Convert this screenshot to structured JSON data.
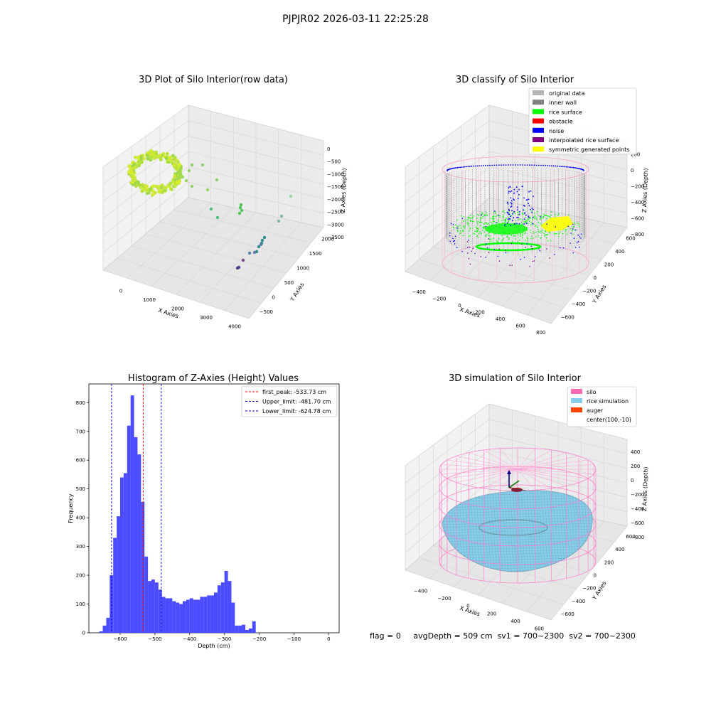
{
  "figure": {
    "suptitle": "PJPJR02 2026-03-11 22:25:28",
    "status": {
      "flag": "flag = 0",
      "avg_depth": "avgDepth = 509 cm",
      "sv1": "sv1 = 700~2300",
      "sv2": "sv2 = 700~2300"
    }
  },
  "colors": {
    "histogram_bar": "#4b4bff",
    "first_peak_line": "#ff0000",
    "limit_lines": "#0000cc",
    "original_data": "#b3b3b3",
    "inner_wall": "#808080",
    "rice_surface": "#00ff00",
    "obstacle": "#ff0000",
    "noise": "#0000ff",
    "interpolated_rice_surface": "#800080",
    "symmetric_generated_points": "#ffff00",
    "silo": "#ff69b4",
    "rice_simulation": "#87ceeb",
    "auger": "#ff4500"
  },
  "chart_data": [
    {
      "type": "scatter",
      "projection": "3d",
      "title": "3D Plot of Silo Interior(row data)",
      "xlabel": "X Axies",
      "ylabel": "Y Axies",
      "zlabel": "Z Axies (Depth)",
      "x_ticks": [
        "0",
        "1000",
        "2000",
        "3000",
        "4000"
      ],
      "y_ticks": [
        "−500",
        "0",
        "500",
        "1000",
        "1500",
        "2000"
      ],
      "z_ticks": [
        "0",
        "−500",
        "−1000",
        "−1500",
        "−2000",
        "−2500",
        "−3000",
        "−3500"
      ]
    },
    {
      "type": "scatter",
      "projection": "3d",
      "title": "3D classify of Silo Interior",
      "xlabel": "X Axies",
      "ylabel": "Y Axies",
      "zlabel": "Z Axies (Depth)",
      "x_ticks": [
        "−400",
        "−200",
        "0",
        "200",
        "400",
        "600",
        "800"
      ],
      "y_ticks": [
        "−600",
        "−400",
        "−200",
        "0",
        "200",
        "400",
        "600"
      ],
      "z_ticks": [
        "200",
        "0",
        "−200",
        "−400",
        "−600",
        "−800"
      ],
      "legend_position": "top-right",
      "legend": [
        "original data",
        "inner wall",
        "rice surface",
        "obstacle",
        "noise",
        "interpolated rice surface",
        "symmetric generated points"
      ]
    },
    {
      "type": "bar",
      "title": "Histogram of Z-Axies (Height) Values",
      "xlabel": "Depth (cm)",
      "ylabel": "Frequency",
      "xlim": [
        -690,
        30
      ],
      "ylim": [
        0,
        865
      ],
      "x_ticks": [
        -600,
        -500,
        -400,
        -300,
        -200,
        -100,
        0
      ],
      "y_ticks": [
        0,
        100,
        200,
        300,
        400,
        500,
        600,
        700,
        800
      ],
      "bin_start": -660,
      "bin_width": 10,
      "values": [
        5,
        25,
        52,
        200,
        330,
        405,
        540,
        555,
        720,
        825,
        680,
        620,
        455,
        265,
        180,
        185,
        175,
        150,
        125,
        120,
        120,
        110,
        105,
        100,
        110,
        115,
        120,
        115,
        115,
        125,
        125,
        130,
        130,
        140,
        165,
        175,
        215,
        180,
        105,
        25,
        25,
        28,
        10,
        15,
        40
      ],
      "vlines": [
        {
          "label": "first_peak: -533.73 cm",
          "x": -533.73,
          "color_key": "first_peak_line"
        },
        {
          "label": "Upper_limit: -481.70 cm",
          "x": -481.7,
          "color_key": "limit_lines"
        },
        {
          "label": "Lower_limit: -624.78 cm",
          "x": -624.78,
          "color_key": "limit_lines"
        }
      ],
      "legend_position": "top-right"
    },
    {
      "type": "surface",
      "projection": "3d",
      "title": "3D simulation of Silo Interior",
      "xlabel": "X Axies",
      "ylabel": "Y Axies",
      "zlabel": "Z Axies (Depth)",
      "x_ticks": [
        "−400",
        "−200",
        "0",
        "200",
        "400",
        "600"
      ],
      "y_ticks": [
        "−600",
        "−400",
        "−200",
        "0",
        "200",
        "400",
        "600"
      ],
      "z_ticks": [
        "400",
        "200",
        "0",
        "−200",
        "−400",
        "−600",
        "−800"
      ],
      "legend_position": "top-right",
      "legend": [
        "silo",
        "rice simulation",
        "auger",
        "center(100,-10)"
      ]
    }
  ]
}
